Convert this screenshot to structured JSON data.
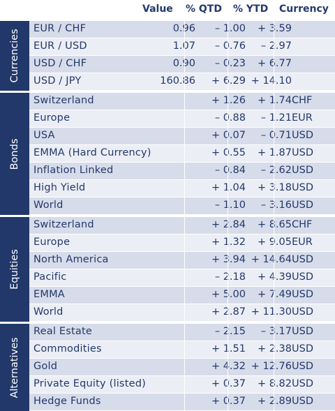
{
  "headers": {
    "value": "Value",
    "qtd": "% QTD",
    "ytd": "% YTD",
    "currency": "Currency"
  },
  "sections": [
    {
      "label": "Currencies",
      "rows": [
        {
          "name": "EUR / CHF",
          "value": "0.96",
          "qtd": "– 1.00",
          "ytd": "+ 3.59",
          "currency": ""
        },
        {
          "name": "EUR / USD",
          "value": "1.07",
          "qtd": "– 0.76",
          "ytd": "– 2.97",
          "currency": ""
        },
        {
          "name": "USD / CHF",
          "value": "0.90",
          "qtd": "– 0.23",
          "ytd": "+ 6.77",
          "currency": ""
        },
        {
          "name": "USD / JPY",
          "value": "160.86",
          "qtd": "+ 6.29",
          "ytd": "+ 14.10",
          "currency": ""
        }
      ]
    },
    {
      "label": "Bonds",
      "rows": [
        {
          "name": "Switzerland",
          "value": "",
          "qtd": "+ 1.26",
          "ytd": "+ 1.74",
          "currency": "CHF"
        },
        {
          "name": "Europe",
          "value": "",
          "qtd": "– 0.88",
          "ytd": "– 1.21",
          "currency": "EUR"
        },
        {
          "name": "USA",
          "value": "",
          "qtd": "+ 0.07",
          "ytd": "– 0.71",
          "currency": "USD"
        },
        {
          "name": "EMMA (Hard Currency)",
          "value": "",
          "qtd": "+ 0.55",
          "ytd": "+ 1.87",
          "currency": "USD"
        },
        {
          "name": "Inflation Linked",
          "value": "",
          "qtd": "– 0.84",
          "ytd": "– 2.62",
          "currency": "USD"
        },
        {
          "name": "High Yield",
          "value": "",
          "qtd": "+ 1.04",
          "ytd": "+ 3.18",
          "currency": "USD"
        },
        {
          "name": "World",
          "value": "",
          "qtd": "– 1.10",
          "ytd": "– 3.16",
          "currency": "USD"
        }
      ]
    },
    {
      "label": "Equities",
      "rows": [
        {
          "name": "Switzerland",
          "value": "",
          "qtd": "+ 2.84",
          "ytd": "+ 8.65",
          "currency": "CHF"
        },
        {
          "name": "Europe",
          "value": "",
          "qtd": "+ 1.32",
          "ytd": "+ 9.05",
          "currency": "EUR"
        },
        {
          "name": "North America",
          "value": "",
          "qtd": "+ 3.94",
          "ytd": "+ 14.64",
          "currency": "USD"
        },
        {
          "name": "Pacific",
          "value": "",
          "qtd": "– 2.18",
          "ytd": "+ 4.39",
          "currency": "USD"
        },
        {
          "name": "EMMA",
          "value": "",
          "qtd": "+ 5.00",
          "ytd": "+ 7.49",
          "currency": "USD"
        },
        {
          "name": "World",
          "value": "",
          "qtd": "+ 2.87",
          "ytd": "+ 11.30",
          "currency": "USD"
        }
      ]
    },
    {
      "label": "Alternatives",
      "rows": [
        {
          "name": "Real Estate",
          "value": "",
          "qtd": "– 2.15",
          "ytd": "– 3.17",
          "currency": "USD"
        },
        {
          "name": "Commodities",
          "value": "",
          "qtd": "+ 1.51",
          "ytd": "+ 2.38",
          "currency": "USD"
        },
        {
          "name": "Gold",
          "value": "",
          "qtd": "+ 4.32",
          "ytd": "+ 12.76",
          "currency": "USD"
        },
        {
          "name": "Private Equity (listed)",
          "value": "",
          "qtd": "+ 0.37",
          "ytd": "+ 8.82",
          "currency": "USD"
        },
        {
          "name": "Hedge Funds",
          "value": "",
          "qtd": "+ 0.37",
          "ytd": "+ 2.89",
          "currency": "USD"
        }
      ]
    }
  ]
}
